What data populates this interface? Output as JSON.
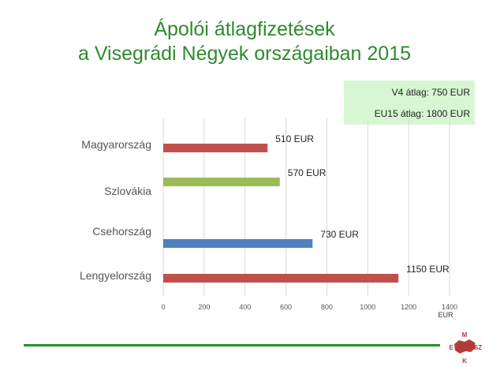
{
  "title": {
    "line1": "Ápolói átlagfizetések",
    "line2": "a Visegrádi Négyek országaiban 2015"
  },
  "averages": {
    "v4": "V4 átlag: 750 EUR",
    "eu15": "EU15 átlag: 1800 EUR"
  },
  "logo": {
    "letters": [
      "M",
      "E",
      "SZ",
      "K"
    ],
    "color": "#b33a3a",
    "icon": "map-emblem-icon"
  },
  "chart_data": {
    "type": "bar",
    "orientation": "horizontal",
    "categories": [
      "Magyarország",
      "Szlovákia",
      "Csehország",
      "Lengyelország"
    ],
    "values": [
      510,
      570,
      730,
      1150
    ],
    "data_labels": [
      "510 EUR",
      "570 EUR",
      "730 EUR",
      "1150 EUR"
    ],
    "colors": [
      "#c0504d",
      "#9bbb59",
      "#4f81bd",
      "#c0504d"
    ],
    "xlim": [
      0,
      1400
    ],
    "xticks": [
      0,
      200,
      400,
      600,
      800,
      1000,
      1200,
      1400
    ],
    "xlabel": "EUR",
    "grid": "vertical"
  }
}
